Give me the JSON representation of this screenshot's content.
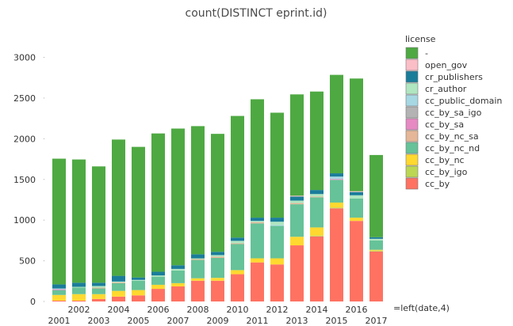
{
  "chart_data": {
    "type": "bar",
    "stacked": true,
    "title": "count(DISTINCT eprint.id)",
    "xlabel": "=left(date,4)",
    "ylabel": "",
    "ylim": [
      0,
      3000
    ],
    "yticks": [
      0,
      500,
      1000,
      1500,
      2000,
      2500,
      3000
    ],
    "grid": false,
    "legend": {
      "title": "license",
      "placement": "right"
    },
    "categories": [
      "2001",
      "2002",
      "2003",
      "2004",
      "2005",
      "2006",
      "2007",
      "2008",
      "2009",
      "2010",
      "2011",
      "2012",
      "2013",
      "2014",
      "2015",
      "2016",
      "2017"
    ],
    "series": [
      {
        "name": "cc_by",
        "color": "#ff7262",
        "values": [
          10,
          10,
          30,
          60,
          75,
          155,
          185,
          255,
          255,
          335,
          480,
          455,
          690,
          800,
          1145,
          990,
          615
        ]
      },
      {
        "name": "cc_by_igo",
        "color": "#bcd753",
        "values": [
          0,
          0,
          0,
          0,
          0,
          0,
          0,
          0,
          0,
          0,
          0,
          0,
          0,
          10,
          10,
          0,
          10
        ]
      },
      {
        "name": "cc_by_nc",
        "color": "#ffd92f",
        "values": [
          70,
          80,
          60,
          70,
          65,
          50,
          40,
          30,
          35,
          50,
          50,
          75,
          105,
          100,
          60,
          40,
          10
        ]
      },
      {
        "name": "cc_by_nc_nd",
        "color": "#66c298",
        "values": [
          60,
          80,
          70,
          95,
          115,
          100,
          155,
          225,
          245,
          320,
          430,
          400,
          400,
          370,
          280,
          235,
          115
        ]
      },
      {
        "name": "cc_by_nc_sa",
        "color": "#e5b798",
        "values": [
          0,
          0,
          10,
          10,
          0,
          0,
          0,
          10,
          15,
          10,
          15,
          0,
          15,
          10,
          0,
          0,
          0
        ]
      },
      {
        "name": "cc_by_sa",
        "color": "#e78ac3",
        "values": [
          10,
          0,
          0,
          0,
          0,
          0,
          0,
          0,
          0,
          0,
          0,
          0,
          0,
          0,
          10,
          0,
          0
        ]
      },
      {
        "name": "cc_by_sa_igo",
        "color": "#b3b3b3",
        "values": [
          0,
          0,
          0,
          0,
          0,
          0,
          0,
          0,
          0,
          0,
          0,
          0,
          0,
          0,
          0,
          0,
          0
        ]
      },
      {
        "name": "cc_public_domain",
        "color": "#a6d8e3",
        "values": [
          10,
          0,
          0,
          0,
          0,
          0,
          0,
          0,
          0,
          0,
          0,
          10,
          0,
          0,
          30,
          0,
          0
        ]
      },
      {
        "name": "cr_author",
        "color": "#b0e6c0",
        "values": [
          0,
          10,
          20,
          10,
          10,
          15,
          20,
          10,
          20,
          30,
          15,
          40,
          30,
          30,
          0,
          40,
          20
        ]
      },
      {
        "name": "cr_publishers",
        "color": "#1a7d9a",
        "values": [
          50,
          50,
          40,
          70,
          30,
          45,
          45,
          50,
          40,
          40,
          40,
          50,
          50,
          50,
          40,
          40,
          20
        ]
      },
      {
        "name": "open_gov",
        "color": "#fbbec7",
        "values": [
          0,
          0,
          0,
          0,
          0,
          0,
          0,
          0,
          0,
          0,
          0,
          0,
          10,
          0,
          0,
          10,
          0
        ]
      },
      {
        "name": "-",
        "color": "#4ea942",
        "values": [
          1545,
          1515,
          1430,
          1675,
          1605,
          1700,
          1680,
          1575,
          1450,
          1495,
          1455,
          1290,
          1245,
          1210,
          1210,
          1385,
          1010
        ]
      }
    ],
    "legend_order": [
      "-",
      "open_gov",
      "cr_publishers",
      "cr_author",
      "cc_public_domain",
      "cc_by_sa_igo",
      "cc_by_sa",
      "cc_by_nc_sa",
      "cc_by_nc_nd",
      "cc_by_nc",
      "cc_by_igo",
      "cc_by"
    ]
  }
}
